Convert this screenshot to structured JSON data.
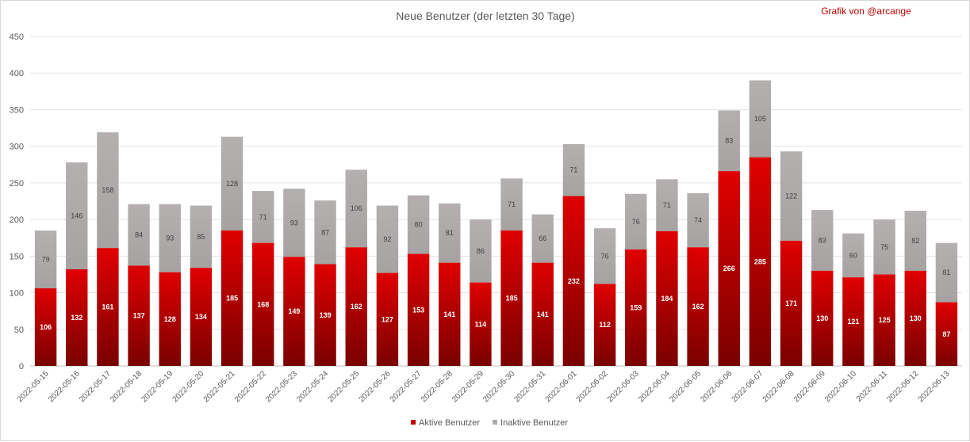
{
  "chart_data": {
    "type": "bar",
    "stacked": true,
    "title": "Neue Benutzer (der letzten 30 Tage)",
    "credit": "Grafik von @arcange",
    "categories": [
      "2022-05-15",
      "2022-05-16",
      "2022-05-17",
      "2022-05-18",
      "2022-05-19",
      "2022-05-20",
      "2022-05-21",
      "2022-05-22",
      "2022-05-23",
      "2022-05-24",
      "2022-05-25",
      "2022-05-26",
      "2022-05-27",
      "2022-05-28",
      "2022-05-29",
      "2022-05-30",
      "2022-05-31",
      "2022-06-01",
      "2022-06-02",
      "2022-06-03",
      "2022-06-04",
      "2022-06-05",
      "2022-06-06",
      "2022-06-07",
      "2022-06-08",
      "2022-06-09",
      "2022-06-10",
      "2022-06-11",
      "2022-06-12",
      "2022-06-13"
    ],
    "series": [
      {
        "name": "Aktive Benutzer",
        "color": "#c00000",
        "values": [
          106,
          132,
          161,
          137,
          128,
          134,
          185,
          168,
          149,
          139,
          162,
          127,
          153,
          141,
          114,
          185,
          141,
          232,
          112,
          159,
          184,
          162,
          266,
          285,
          171,
          130,
          121,
          125,
          130,
          87
        ]
      },
      {
        "name": "Inaktive Benutzer",
        "color": "#afabab",
        "values": [
          79,
          146,
          158,
          84,
          93,
          85,
          128,
          71,
          93,
          87,
          106,
          92,
          80,
          81,
          86,
          71,
          66,
          71,
          76,
          76,
          71,
          74,
          83,
          105,
          122,
          83,
          60,
          75,
          82,
          81
        ]
      }
    ],
    "ylim": [
      0,
      450
    ],
    "yticks": [
      0,
      50,
      100,
      150,
      200,
      250,
      300,
      350,
      400,
      450
    ],
    "xlabel": "",
    "ylabel": "",
    "grid": true,
    "legend_position": "bottom"
  }
}
